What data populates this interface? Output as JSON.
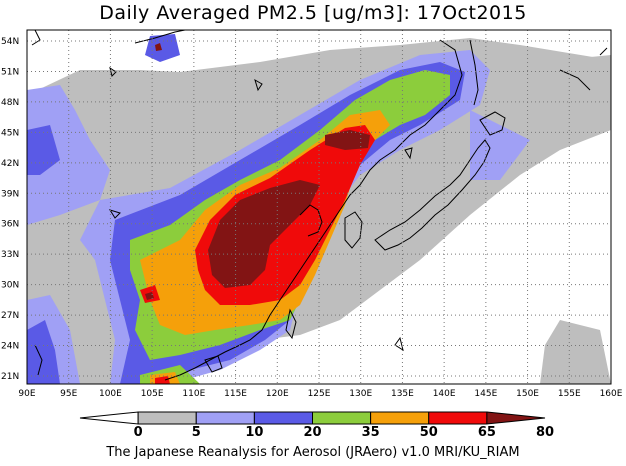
{
  "title": "Daily Averaged PM2.5 [ug/m3]: 17Oct2015",
  "footer": "The Japanese Reanalysis for Aerosol (JRAero) v1.0 MRI/KU_RIAM",
  "map": {
    "lon_labels": [
      "90E",
      "95E",
      "100E",
      "105E",
      "110E",
      "115E",
      "120E",
      "125E",
      "130E",
      "135E",
      "140E",
      "145E",
      "150E",
      "155E",
      "160E"
    ],
    "lat_labels": [
      "54N",
      "51N",
      "48N",
      "45N",
      "42N",
      "39N",
      "36N",
      "33N",
      "30N",
      "27N",
      "24N",
      "21N"
    ]
  },
  "colorbar": {
    "labels": [
      "0",
      "5",
      "10",
      "20",
      "35",
      "50",
      "65",
      "80"
    ],
    "colors": [
      "#ffffff",
      "#bebebe",
      "#a0a0f5",
      "#5a5ae6",
      "#8ccd3c",
      "#f5a00a",
      "#f00a0a",
      "#821414"
    ]
  }
}
